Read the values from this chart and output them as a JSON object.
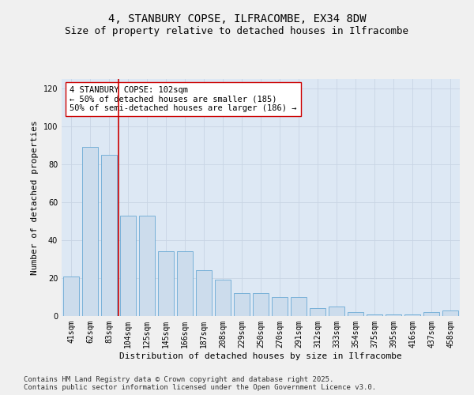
{
  "title_line1": "4, STANBURY COPSE, ILFRACOMBE, EX34 8DW",
  "title_line2": "Size of property relative to detached houses in Ilfracombe",
  "xlabel": "Distribution of detached houses by size in Ilfracombe",
  "ylabel": "Number of detached properties",
  "categories": [
    "41sqm",
    "62sqm",
    "83sqm",
    "104sqm",
    "125sqm",
    "145sqm",
    "166sqm",
    "187sqm",
    "208sqm",
    "229sqm",
    "250sqm",
    "270sqm",
    "291sqm",
    "312sqm",
    "333sqm",
    "354sqm",
    "375sqm",
    "395sqm",
    "416sqm",
    "437sqm",
    "458sqm"
  ],
  "values": [
    21,
    89,
    85,
    53,
    53,
    34,
    34,
    24,
    19,
    12,
    12,
    10,
    10,
    4,
    5,
    2,
    1,
    1,
    1,
    2,
    3
  ],
  "bar_color": "#ccdcec",
  "bar_edge_color": "#6aaad4",
  "vline_x": 2.5,
  "vline_color": "#cc0000",
  "annotation_text": "4 STANBURY COPSE: 102sqm\n← 50% of detached houses are smaller (185)\n50% of semi-detached houses are larger (186) →",
  "annotation_box_color": "#ffffff",
  "annotation_box_edge_color": "#cc0000",
  "ylim": [
    0,
    125
  ],
  "yticks": [
    0,
    20,
    40,
    60,
    80,
    100,
    120
  ],
  "grid_color": "#c8d4e4",
  "background_color": "#dde8f4",
  "fig_background": "#f0f0f0",
  "footer_line1": "Contains HM Land Registry data © Crown copyright and database right 2025.",
  "footer_line2": "Contains public sector information licensed under the Open Government Licence v3.0.",
  "title_fontsize": 10,
  "subtitle_fontsize": 9,
  "axis_label_fontsize": 8,
  "tick_fontsize": 7,
  "annotation_fontsize": 7.5,
  "footer_fontsize": 6.5
}
